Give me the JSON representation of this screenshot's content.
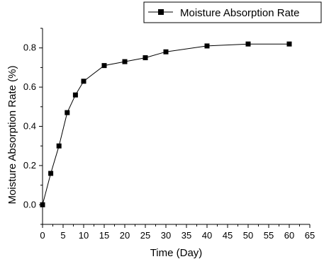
{
  "chart_data": {
    "type": "line",
    "legend": {
      "label": "Moisture Absorption Rate",
      "placement": "top-right"
    },
    "xlabel": "Time (Day)",
    "ylabel": "Moisture Absorption Rate (%)",
    "xlim": [
      0,
      65
    ],
    "ylim": [
      -0.1,
      0.9
    ],
    "x_ticks": [
      0,
      5,
      10,
      15,
      20,
      25,
      30,
      35,
      40,
      45,
      50,
      55,
      60,
      65
    ],
    "y_ticks": [
      0.0,
      0.2,
      0.4,
      0.6,
      0.8
    ],
    "y_tick_labels": [
      "0.0",
      "0.2",
      "0.4",
      "0.6",
      "0.8"
    ],
    "grid": false,
    "marker": "square",
    "series": [
      {
        "name": "Moisture Absorption Rate",
        "color": "#000000",
        "x": [
          0,
          2,
          4,
          6,
          8,
          10,
          15,
          20,
          25,
          30,
          40,
          50,
          60
        ],
        "y": [
          0.0,
          0.16,
          0.3,
          0.47,
          0.56,
          0.63,
          0.71,
          0.73,
          0.75,
          0.78,
          0.81,
          0.82,
          0.82
        ]
      }
    ]
  }
}
